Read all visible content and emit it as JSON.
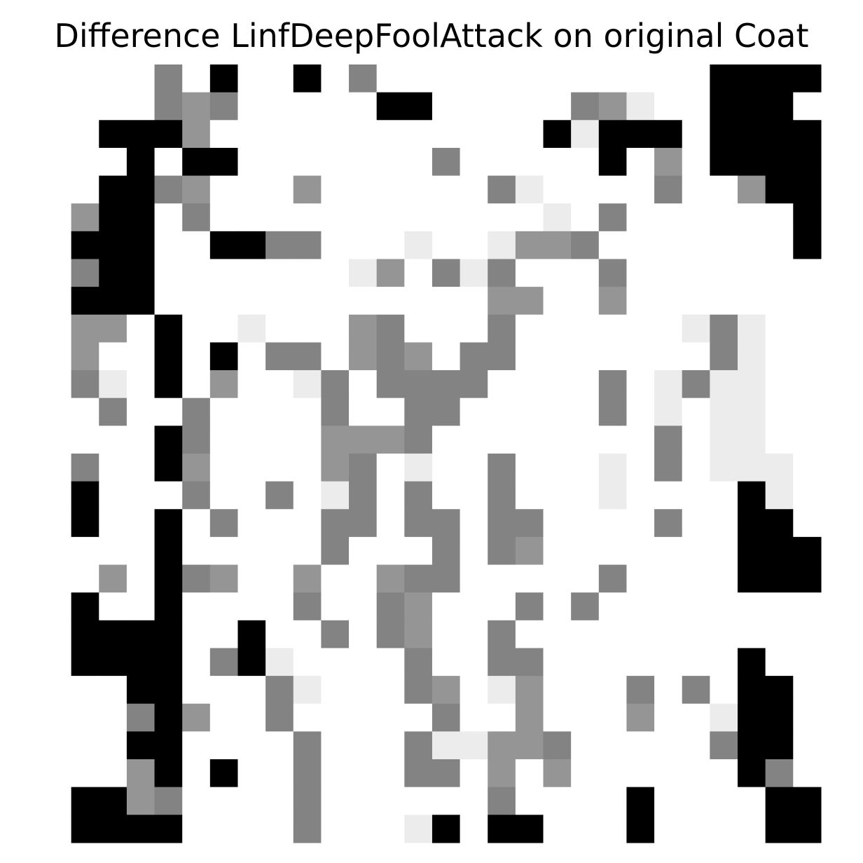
{
  "title": "Difference LinfDeepFoolAttack on original Coat",
  "chart_data": {
    "type": "heatmap",
    "title": "Difference LinfDeepFoolAttack on original Coat",
    "xlabel": "",
    "ylabel": "",
    "axes_visible": false,
    "grid": false,
    "colormap": "gray_r",
    "levels": {
      "0": "#ffffff",
      "1": "#ececec",
      "2": "#959595",
      "3": "#838383",
      "4": "#000000"
    },
    "rows": 28,
    "cols": 28,
    "values": [
      [
        0,
        0,
        0,
        0,
        3,
        0,
        4,
        0,
        0,
        4,
        0,
        3,
        0,
        0,
        0,
        0,
        0,
        0,
        0,
        0,
        0,
        0,
        0,
        0,
        4,
        4,
        4,
        4
      ],
      [
        0,
        0,
        0,
        0,
        3,
        2,
        3,
        0,
        0,
        0,
        0,
        0,
        4,
        4,
        0,
        0,
        0,
        0,
        0,
        3,
        2,
        1,
        0,
        0,
        4,
        4,
        4,
        0
      ],
      [
        0,
        0,
        4,
        4,
        4,
        2,
        0,
        0,
        0,
        0,
        0,
        0,
        0,
        0,
        0,
        0,
        0,
        0,
        4,
        1,
        4,
        4,
        4,
        0,
        4,
        4,
        4,
        4
      ],
      [
        0,
        0,
        0,
        4,
        0,
        4,
        4,
        0,
        0,
        0,
        0,
        0,
        0,
        0,
        3,
        0,
        0,
        0,
        0,
        0,
        4,
        0,
        2,
        0,
        4,
        4,
        4,
        4
      ],
      [
        0,
        0,
        4,
        4,
        3,
        2,
        0,
        0,
        0,
        2,
        0,
        0,
        0,
        0,
        0,
        0,
        3,
        1,
        0,
        0,
        0,
        0,
        3,
        0,
        0,
        2,
        4,
        4
      ],
      [
        0,
        2,
        4,
        4,
        0,
        3,
        0,
        0,
        0,
        0,
        0,
        0,
        0,
        0,
        0,
        0,
        0,
        0,
        1,
        0,
        3,
        0,
        0,
        0,
        0,
        0,
        0,
        4
      ],
      [
        0,
        4,
        4,
        4,
        0,
        0,
        4,
        4,
        3,
        3,
        0,
        0,
        0,
        1,
        0,
        0,
        1,
        2,
        2,
        3,
        0,
        0,
        0,
        0,
        0,
        0,
        0,
        4
      ],
      [
        0,
        3,
        4,
        4,
        0,
        0,
        0,
        0,
        0,
        0,
        0,
        1,
        2,
        0,
        3,
        1,
        3,
        0,
        0,
        0,
        3,
        0,
        0,
        0,
        0,
        0,
        0,
        0
      ],
      [
        0,
        4,
        4,
        4,
        0,
        0,
        0,
        0,
        0,
        0,
        0,
        0,
        0,
        0,
        0,
        0,
        2,
        2,
        0,
        0,
        2,
        0,
        0,
        0,
        0,
        0,
        0,
        0
      ],
      [
        0,
        2,
        2,
        0,
        4,
        0,
        0,
        1,
        0,
        0,
        0,
        2,
        3,
        0,
        0,
        0,
        3,
        0,
        0,
        0,
        0,
        0,
        0,
        1,
        3,
        1,
        0,
        0
      ],
      [
        0,
        2,
        0,
        0,
        4,
        0,
        4,
        0,
        3,
        3,
        0,
        2,
        3,
        2,
        0,
        3,
        3,
        0,
        0,
        0,
        0,
        0,
        0,
        0,
        3,
        1,
        0,
        0
      ],
      [
        0,
        3,
        1,
        0,
        4,
        0,
        2,
        0,
        0,
        1,
        3,
        0,
        3,
        3,
        3,
        3,
        0,
        0,
        0,
        0,
        3,
        0,
        1,
        3,
        1,
        1,
        0,
        0
      ],
      [
        0,
        0,
        3,
        0,
        0,
        3,
        0,
        0,
        0,
        0,
        3,
        0,
        0,
        3,
        3,
        0,
        0,
        0,
        0,
        0,
        3,
        0,
        1,
        0,
        1,
        1,
        0,
        0
      ],
      [
        0,
        0,
        0,
        0,
        4,
        3,
        0,
        0,
        0,
        0,
        2,
        2,
        2,
        3,
        0,
        0,
        0,
        0,
        0,
        0,
        0,
        0,
        3,
        0,
        1,
        1,
        0,
        0
      ],
      [
        0,
        3,
        0,
        0,
        4,
        2,
        0,
        0,
        0,
        0,
        2,
        3,
        0,
        1,
        0,
        0,
        3,
        0,
        0,
        0,
        1,
        0,
        3,
        0,
        1,
        1,
        1,
        0
      ],
      [
        0,
        4,
        0,
        0,
        0,
        3,
        0,
        0,
        3,
        0,
        1,
        3,
        0,
        3,
        0,
        0,
        3,
        0,
        0,
        0,
        1,
        0,
        0,
        0,
        0,
        4,
        1,
        0
      ],
      [
        0,
        4,
        0,
        0,
        4,
        0,
        3,
        0,
        0,
        0,
        3,
        3,
        0,
        3,
        3,
        0,
        3,
        3,
        0,
        0,
        0,
        0,
        3,
        0,
        0,
        4,
        4,
        0
      ],
      [
        0,
        0,
        0,
        0,
        4,
        0,
        0,
        0,
        0,
        0,
        3,
        0,
        0,
        0,
        3,
        0,
        3,
        2,
        0,
        0,
        0,
        0,
        0,
        0,
        0,
        4,
        4,
        4
      ],
      [
        0,
        0,
        2,
        0,
        4,
        3,
        2,
        0,
        0,
        2,
        0,
        0,
        2,
        3,
        3,
        0,
        0,
        0,
        0,
        0,
        3,
        0,
        0,
        0,
        0,
        4,
        4,
        4
      ],
      [
        0,
        4,
        0,
        0,
        4,
        0,
        0,
        0,
        0,
        3,
        0,
        0,
        3,
        2,
        0,
        0,
        0,
        3,
        0,
        3,
        0,
        0,
        0,
        0,
        0,
        0,
        0,
        0
      ],
      [
        0,
        4,
        4,
        4,
        4,
        0,
        0,
        4,
        0,
        0,
        3,
        0,
        3,
        2,
        0,
        0,
        3,
        0,
        0,
        0,
        0,
        0,
        0,
        0,
        0,
        0,
        0,
        0
      ],
      [
        0,
        4,
        4,
        4,
        4,
        0,
        3,
        4,
        1,
        0,
        0,
        0,
        0,
        3,
        0,
        0,
        3,
        3,
        0,
        0,
        0,
        0,
        0,
        0,
        0,
        4,
        0,
        0
      ],
      [
        0,
        0,
        0,
        4,
        4,
        0,
        0,
        0,
        3,
        1,
        0,
        0,
        0,
        3,
        2,
        0,
        1,
        2,
        0,
        0,
        0,
        3,
        0,
        3,
        0,
        4,
        4,
        0
      ],
      [
        0,
        0,
        0,
        3,
        4,
        2,
        0,
        0,
        3,
        0,
        0,
        0,
        0,
        0,
        3,
        0,
        0,
        2,
        0,
        0,
        0,
        2,
        0,
        0,
        1,
        4,
        4,
        0
      ],
      [
        0,
        0,
        0,
        4,
        4,
        0,
        0,
        0,
        0,
        3,
        0,
        0,
        0,
        3,
        1,
        1,
        2,
        2,
        3,
        0,
        0,
        0,
        0,
        0,
        3,
        4,
        4,
        0
      ],
      [
        0,
        0,
        0,
        2,
        4,
        0,
        4,
        0,
        0,
        3,
        0,
        0,
        0,
        3,
        3,
        0,
        2,
        0,
        2,
        0,
        0,
        0,
        0,
        0,
        0,
        4,
        3,
        0
      ],
      [
        0,
        4,
        4,
        2,
        3,
        0,
        0,
        0,
        0,
        3,
        0,
        0,
        0,
        0,
        0,
        0,
        3,
        0,
        0,
        0,
        0,
        4,
        0,
        0,
        0,
        0,
        4,
        4
      ],
      [
        0,
        4,
        4,
        4,
        4,
        0,
        0,
        0,
        0,
        3,
        0,
        0,
        0,
        1,
        4,
        0,
        4,
        4,
        0,
        0,
        0,
        4,
        0,
        0,
        0,
        0,
        4,
        4
      ]
    ]
  }
}
